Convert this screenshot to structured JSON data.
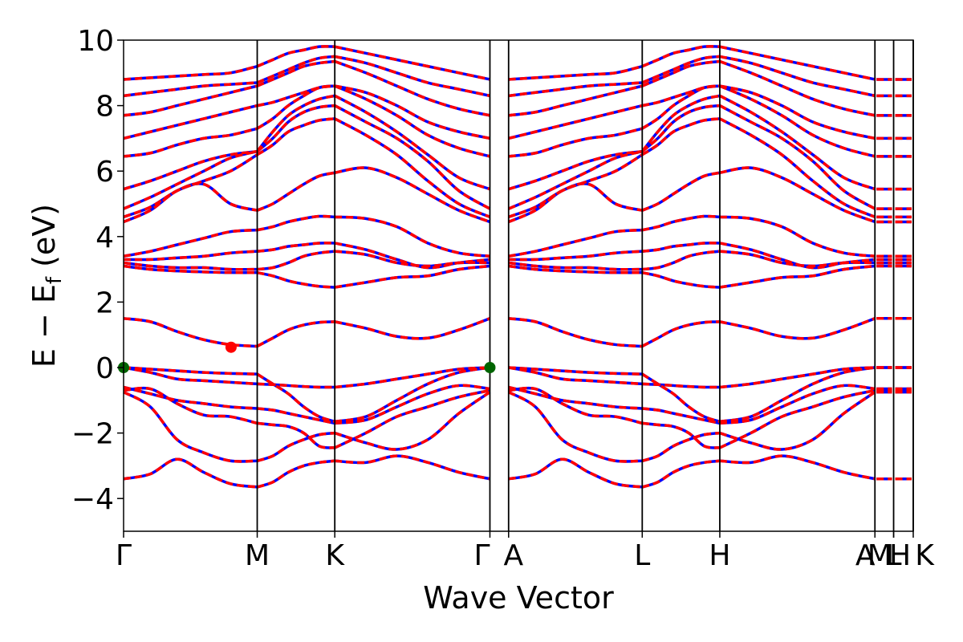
{
  "chart_data": {
    "type": "line",
    "title": "",
    "xlabel": "Wave Vector",
    "ylabel": {
      "main": "E − E",
      "subscript": "f",
      "unit": " (eV)"
    },
    "ylim": [
      -5,
      10
    ],
    "yticks": [
      -4,
      -2,
      0,
      2,
      4,
      6,
      8,
      10
    ],
    "ytick_labels": [
      "−4",
      "−2",
      "0",
      "2",
      "4",
      "6",
      "8",
      "10"
    ],
    "xlim": [
      0,
      8.45
    ],
    "high_symmetry_points": [
      {
        "label": "Γ",
        "x": 0.0
      },
      {
        "label": "M",
        "x": 1.43
      },
      {
        "label": "K",
        "x": 2.26
      },
      {
        "label": "Γ",
        "x": 3.92
      },
      {
        "label": "A",
        "x": 4.12
      },
      {
        "label": "L",
        "x": 5.55
      },
      {
        "label": "H",
        "x": 6.38
      },
      {
        "label": "A",
        "x": 8.04
      },
      {
        "label": "M",
        "x": 8.04
      },
      {
        "label": "L",
        "x": 8.24
      },
      {
        "label": "H",
        "x": 8.24
      },
      {
        "label": "K",
        "x": 8.45
      }
    ],
    "vertical_lines_x": [
      1.43,
      2.26,
      3.92,
      4.12,
      5.55,
      6.38,
      8.04,
      8.24,
      8.45
    ],
    "segments": [
      {
        "from": 0.0,
        "to": 1.43
      },
      {
        "from": 1.43,
        "to": 2.26
      },
      {
        "from": 2.26,
        "to": 3.92
      },
      {
        "from": 4.12,
        "to": 5.55
      },
      {
        "from": 5.55,
        "to": 6.38
      },
      {
        "from": 6.38,
        "to": 8.04
      }
    ],
    "series": [
      {
        "color": "#0000ff",
        "style": "solid",
        "width": 3.5
      },
      {
        "color": "#ff0000",
        "style": "dashed",
        "width": 3.5
      }
    ],
    "bands_by_segment": [
      [
        [
          -3.4,
          -3.25,
          -2.8,
          -3.2,
          -3.55,
          -3.65
        ],
        [
          -0.75,
          -1.2,
          -2.2,
          -2.6,
          -2.85,
          -2.85
        ],
        [
          -0.7,
          -0.65,
          -1.1,
          -1.45,
          -1.5,
          -1.7
        ],
        [
          -0.6,
          -0.8,
          -1.0,
          -1.1,
          -1.2,
          -1.25
        ],
        [
          0.0,
          -0.15,
          -0.35,
          -0.4,
          -0.45,
          -0.5
        ],
        [
          0.0,
          -0.05,
          -0.1,
          -0.15,
          -0.18,
          -0.2
        ],
        [
          1.5,
          1.4,
          1.1,
          0.85,
          0.7,
          0.65
        ],
        [
          3.1,
          3.0,
          2.95,
          2.92,
          2.9,
          2.9
        ],
        [
          3.2,
          3.1,
          3.05,
          3.05,
          3.0,
          3.0
        ],
        [
          3.3,
          3.3,
          3.35,
          3.4,
          3.5,
          3.55
        ],
        [
          3.4,
          3.55,
          3.75,
          3.95,
          4.15,
          4.2
        ],
        [
          4.45,
          4.8,
          5.4,
          5.6,
          5.0,
          4.8
        ],
        [
          4.6,
          4.9,
          5.4,
          5.7,
          6.0,
          6.5
        ],
        [
          4.85,
          5.2,
          5.6,
          6.0,
          6.4,
          6.6
        ],
        [
          5.45,
          5.7,
          6.0,
          6.3,
          6.5,
          6.6
        ],
        [
          6.45,
          6.55,
          6.8,
          7.0,
          7.1,
          7.3
        ],
        [
          7.0,
          7.2,
          7.4,
          7.6,
          7.8,
          8.0
        ],
        [
          7.7,
          7.8,
          8.0,
          8.2,
          8.4,
          8.6
        ],
        [
          8.3,
          8.4,
          8.5,
          8.6,
          8.65,
          8.7
        ],
        [
          8.8,
          8.85,
          8.9,
          8.95,
          9.0,
          9.2
        ]
      ],
      [
        [
          -3.65,
          -3.5,
          -3.2,
          -3.0,
          -2.9,
          -2.85
        ],
        [
          -2.85,
          -2.7,
          -2.4,
          -2.2,
          -2.05,
          -2.0
        ],
        [
          -1.7,
          -1.75,
          -1.8,
          -2.0,
          -2.4,
          -2.45
        ],
        [
          -1.25,
          -1.3,
          -1.4,
          -1.5,
          -1.6,
          -1.7
        ],
        [
          -0.5,
          -0.52,
          -0.55,
          -0.58,
          -0.6,
          -0.6
        ],
        [
          -0.2,
          -0.5,
          -0.8,
          -1.2,
          -1.5,
          -1.65
        ],
        [
          0.65,
          0.9,
          1.15,
          1.3,
          1.38,
          1.4
        ],
        [
          2.9,
          2.8,
          2.65,
          2.55,
          2.48,
          2.45
        ],
        [
          3.0,
          3.05,
          3.2,
          3.4,
          3.5,
          3.55
        ],
        [
          3.55,
          3.6,
          3.7,
          3.75,
          3.8,
          3.8
        ],
        [
          4.2,
          4.3,
          4.45,
          4.55,
          4.62,
          4.6
        ],
        [
          4.8,
          5.0,
          5.3,
          5.6,
          5.85,
          5.95
        ],
        [
          6.5,
          6.8,
          7.2,
          7.4,
          7.55,
          7.6
        ],
        [
          6.6,
          7.0,
          7.5,
          7.8,
          7.95,
          8.0
        ],
        [
          6.6,
          7.2,
          7.7,
          8.0,
          8.2,
          8.3
        ],
        [
          7.3,
          7.6,
          8.0,
          8.3,
          8.55,
          8.6
        ],
        [
          8.0,
          8.1,
          8.25,
          8.4,
          8.55,
          8.6
        ],
        [
          8.6,
          8.8,
          9.0,
          9.2,
          9.3,
          9.35
        ],
        [
          8.7,
          8.9,
          9.1,
          9.3,
          9.45,
          9.5
        ],
        [
          9.2,
          9.4,
          9.6,
          9.7,
          9.8,
          9.8
        ]
      ],
      [
        [
          -2.85,
          -2.9,
          -2.7,
          -2.9,
          -3.2,
          -3.4
        ],
        [
          -2.0,
          -2.3,
          -2.5,
          -2.2,
          -1.4,
          -0.75
        ],
        [
          -2.45,
          -2.0,
          -1.5,
          -1.2,
          -0.9,
          -0.7
        ],
        [
          -1.7,
          -1.6,
          -1.2,
          -0.8,
          -0.55,
          -0.65
        ],
        [
          -0.6,
          -0.5,
          -0.35,
          -0.2,
          -0.05,
          0.0
        ],
        [
          -1.65,
          -1.5,
          -1.0,
          -0.5,
          -0.15,
          0.0
        ],
        [
          1.4,
          1.2,
          0.95,
          0.9,
          1.15,
          1.5
        ],
        [
          2.45,
          2.6,
          2.75,
          2.8,
          3.0,
          3.1
        ],
        [
          3.55,
          3.45,
          3.2,
          3.1,
          3.2,
          3.2
        ],
        [
          3.8,
          3.6,
          3.3,
          3.05,
          3.2,
          3.3
        ],
        [
          4.6,
          4.55,
          4.3,
          3.8,
          3.5,
          3.4
        ],
        [
          5.95,
          6.1,
          5.8,
          5.3,
          4.8,
          4.45
        ],
        [
          7.6,
          7.1,
          6.5,
          5.7,
          5.0,
          4.6
        ],
        [
          8.0,
          7.5,
          7.0,
          6.3,
          5.4,
          4.85
        ],
        [
          8.3,
          7.8,
          7.2,
          6.5,
          5.8,
          5.45
        ],
        [
          8.6,
          8.2,
          7.7,
          7.1,
          6.7,
          6.45
        ],
        [
          8.6,
          8.4,
          8.0,
          7.5,
          7.2,
          7.0
        ],
        [
          9.35,
          9.0,
          8.6,
          8.2,
          7.9,
          7.7
        ],
        [
          9.5,
          9.3,
          9.0,
          8.7,
          8.5,
          8.3
        ],
        [
          9.8,
          9.6,
          9.4,
          9.2,
          9.0,
          8.8
        ]
      ],
      [
        [
          -3.4,
          -3.25,
          -2.8,
          -3.2,
          -3.55,
          -3.65
        ],
        [
          -0.75,
          -1.2,
          -2.2,
          -2.6,
          -2.85,
          -2.85
        ],
        [
          -0.7,
          -0.65,
          -1.1,
          -1.45,
          -1.5,
          -1.7
        ],
        [
          -0.6,
          -0.8,
          -1.0,
          -1.1,
          -1.2,
          -1.25
        ],
        [
          0.0,
          -0.15,
          -0.35,
          -0.4,
          -0.45,
          -0.5
        ],
        [
          0.0,
          -0.05,
          -0.1,
          -0.15,
          -0.18,
          -0.2
        ],
        [
          1.5,
          1.4,
          1.1,
          0.85,
          0.7,
          0.65
        ],
        [
          3.1,
          3.0,
          2.95,
          2.92,
          2.9,
          2.9
        ],
        [
          3.2,
          3.1,
          3.05,
          3.05,
          3.0,
          3.0
        ],
        [
          3.3,
          3.3,
          3.35,
          3.4,
          3.5,
          3.55
        ],
        [
          3.4,
          3.55,
          3.75,
          3.95,
          4.15,
          4.2
        ],
        [
          4.45,
          4.8,
          5.4,
          5.6,
          5.0,
          4.8
        ],
        [
          4.6,
          4.9,
          5.4,
          5.7,
          6.0,
          6.5
        ],
        [
          4.85,
          5.2,
          5.6,
          6.0,
          6.4,
          6.6
        ],
        [
          5.45,
          5.7,
          6.0,
          6.3,
          6.5,
          6.6
        ],
        [
          6.45,
          6.55,
          6.8,
          7.0,
          7.1,
          7.3
        ],
        [
          7.0,
          7.2,
          7.4,
          7.6,
          7.8,
          8.0
        ],
        [
          7.7,
          7.8,
          8.0,
          8.2,
          8.4,
          8.6
        ],
        [
          8.3,
          8.4,
          8.5,
          8.6,
          8.65,
          8.7
        ],
        [
          8.8,
          8.85,
          8.9,
          8.95,
          9.0,
          9.2
        ]
      ],
      [
        [
          -3.65,
          -3.5,
          -3.2,
          -3.0,
          -2.9,
          -2.85
        ],
        [
          -2.85,
          -2.7,
          -2.4,
          -2.2,
          -2.05,
          -2.0
        ],
        [
          -1.7,
          -1.75,
          -1.8,
          -2.0,
          -2.4,
          -2.45
        ],
        [
          -1.25,
          -1.3,
          -1.4,
          -1.5,
          -1.6,
          -1.7
        ],
        [
          -0.5,
          -0.52,
          -0.55,
          -0.58,
          -0.6,
          -0.6
        ],
        [
          -0.2,
          -0.5,
          -0.8,
          -1.2,
          -1.5,
          -1.65
        ],
        [
          0.65,
          0.9,
          1.15,
          1.3,
          1.38,
          1.4
        ],
        [
          2.9,
          2.8,
          2.65,
          2.55,
          2.48,
          2.45
        ],
        [
          3.0,
          3.05,
          3.2,
          3.4,
          3.5,
          3.55
        ],
        [
          3.55,
          3.6,
          3.7,
          3.75,
          3.8,
          3.8
        ],
        [
          4.2,
          4.3,
          4.45,
          4.55,
          4.62,
          4.6
        ],
        [
          4.8,
          5.0,
          5.3,
          5.6,
          5.85,
          5.95
        ],
        [
          6.5,
          6.8,
          7.2,
          7.4,
          7.55,
          7.6
        ],
        [
          6.6,
          7.0,
          7.5,
          7.8,
          7.95,
          8.0
        ],
        [
          6.6,
          7.2,
          7.7,
          8.0,
          8.2,
          8.3
        ],
        [
          7.3,
          7.6,
          8.0,
          8.3,
          8.55,
          8.6
        ],
        [
          8.0,
          8.1,
          8.25,
          8.4,
          8.55,
          8.6
        ],
        [
          8.6,
          8.8,
          9.0,
          9.2,
          9.3,
          9.35
        ],
        [
          8.7,
          8.9,
          9.1,
          9.3,
          9.45,
          9.5
        ],
        [
          9.2,
          9.4,
          9.6,
          9.7,
          9.8,
          9.8
        ]
      ],
      [
        [
          -2.85,
          -2.9,
          -2.7,
          -2.9,
          -3.2,
          -3.4
        ],
        [
          -2.0,
          -2.3,
          -2.5,
          -2.2,
          -1.4,
          -0.75
        ],
        [
          -2.45,
          -2.0,
          -1.5,
          -1.2,
          -0.9,
          -0.7
        ],
        [
          -1.7,
          -1.6,
          -1.2,
          -0.8,
          -0.55,
          -0.65
        ],
        [
          -0.6,
          -0.5,
          -0.35,
          -0.2,
          -0.05,
          0.0
        ],
        [
          -1.65,
          -1.5,
          -1.0,
          -0.5,
          -0.15,
          0.0
        ],
        [
          1.4,
          1.2,
          0.95,
          0.9,
          1.15,
          1.5
        ],
        [
          2.45,
          2.6,
          2.75,
          2.8,
          3.0,
          3.1
        ],
        [
          3.55,
          3.45,
          3.2,
          3.1,
          3.2,
          3.2
        ],
        [
          3.8,
          3.6,
          3.3,
          3.05,
          3.2,
          3.3
        ],
        [
          4.6,
          4.55,
          4.3,
          3.8,
          3.5,
          3.4
        ],
        [
          5.95,
          6.1,
          5.8,
          5.3,
          4.8,
          4.45
        ],
        [
          7.6,
          7.1,
          6.5,
          5.7,
          5.0,
          4.6
        ],
        [
          8.0,
          7.5,
          7.0,
          6.3,
          5.4,
          4.85
        ],
        [
          8.3,
          7.8,
          7.2,
          6.5,
          5.8,
          5.45
        ],
        [
          8.6,
          8.2,
          7.7,
          7.1,
          6.7,
          6.45
        ],
        [
          8.6,
          8.4,
          8.0,
          7.5,
          7.2,
          7.0
        ],
        [
          9.35,
          9.0,
          8.6,
          8.2,
          7.9,
          7.7
        ],
        [
          9.5,
          9.3,
          9.0,
          8.7,
          8.5,
          8.3
        ],
        [
          9.8,
          9.6,
          9.4,
          9.2,
          9.0,
          8.8
        ]
      ]
    ],
    "flat_band_x_ranges": [
      [
        8.04,
        8.24
      ],
      [
        8.24,
        8.45
      ]
    ],
    "markers": [
      {
        "x": 0.0,
        "y": 0.0,
        "color": "#006400",
        "role": "VBM"
      },
      {
        "x": 3.92,
        "y": 0.0,
        "color": "#006400",
        "role": "VBM"
      },
      {
        "x": 1.15,
        "y": 0.62,
        "color": "#ff0000",
        "role": "CBM"
      }
    ],
    "grid": false,
    "legend": "none"
  }
}
